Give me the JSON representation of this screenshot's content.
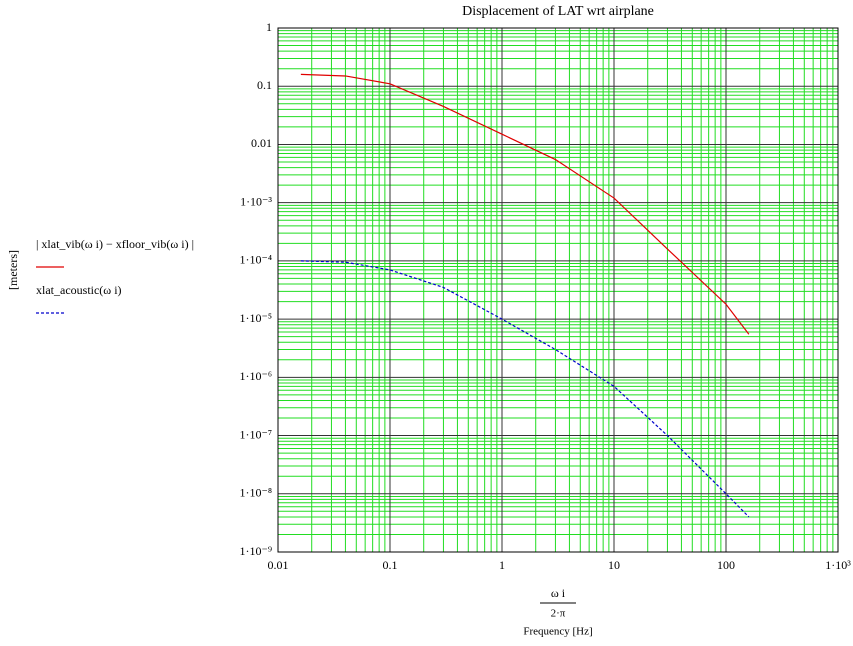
{
  "chart_data": {
    "type": "line",
    "title": "Displacement of LAT wrt airplane",
    "y_label": "[meters]",
    "x_label_numerator": "ω i",
    "x_label_denominator": "2·π",
    "x_label": "Frequency [Hz]",
    "log_x": true,
    "log_y": true,
    "grid": true,
    "x": [
      0.016,
      0.04,
      0.1,
      0.3,
      1,
      3,
      10,
      30,
      100,
      160
    ],
    "series": [
      {
        "name": "| xlat_vib(ω i) − xfloor_vib(ω i) |",
        "color": "#e00000",
        "dash": false,
        "values": [
          0.16,
          0.15,
          0.11,
          0.045,
          0.015,
          0.0055,
          0.0012,
          0.00016,
          1.8e-05,
          5.5e-06
        ]
      },
      {
        "name": "xlat_acoustic(ω i)",
        "color": "#0000cc",
        "dash": true,
        "values": [
          0.0001,
          9.5e-05,
          7e-05,
          3.5e-05,
          1e-05,
          3e-06,
          7e-07,
          1e-07,
          1e-08,
          4e-09
        ]
      }
    ],
    "xlim": [
      0.01,
      1000
    ],
    "ylim": [
      1e-09,
      1
    ],
    "xticks": [
      0.01,
      0.1,
      1,
      10,
      100,
      {
        "value": 1000,
        "label": "1·10³"
      }
    ],
    "yticks": [
      {
        "value": 1e-09,
        "label": "1·10⁻⁹"
      },
      {
        "value": 1e-08,
        "label": "1·10⁻⁸"
      },
      {
        "value": 1e-07,
        "label": "1·10⁻⁷"
      },
      {
        "value": 1e-06,
        "label": "1·10⁻⁶"
      },
      {
        "value": 1e-05,
        "label": "1·10⁻⁵"
      },
      {
        "value": 0.0001,
        "label": "1·10⁻⁴"
      },
      {
        "value": 0.001,
        "label": "1·10⁻³"
      },
      0.01,
      0.1,
      1
    ]
  }
}
